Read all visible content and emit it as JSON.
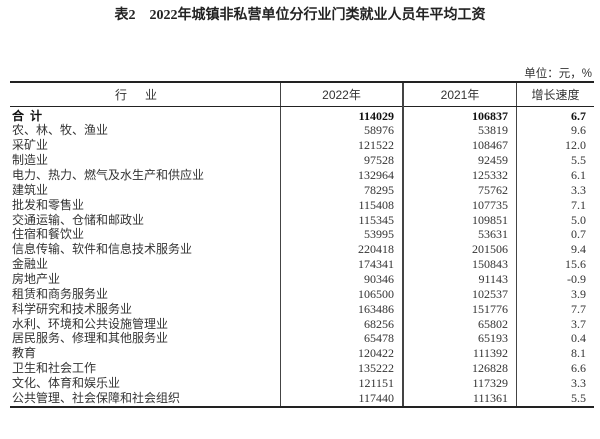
{
  "title": "表2　2022年城镇非私营单位分行业门类就业人员年平均工资",
  "unit": "单位：元，%",
  "table": {
    "headers": [
      "行业",
      "2022年",
      "2021年",
      "增长速度"
    ],
    "rows": [
      [
        "合计",
        "114029",
        "106837",
        "6.7"
      ],
      [
        "农、林、牧、渔业",
        "58976",
        "53819",
        "9.6"
      ],
      [
        "采矿业",
        "121522",
        "108467",
        "12.0"
      ],
      [
        "制造业",
        "97528",
        "92459",
        "5.5"
      ],
      [
        "电力、热力、燃气及水生产和供应业",
        "132964",
        "125332",
        "6.1"
      ],
      [
        "建筑业",
        "78295",
        "75762",
        "3.3"
      ],
      [
        "批发和零售业",
        "115408",
        "107735",
        "7.1"
      ],
      [
        "交通运输、仓储和邮政业",
        "115345",
        "109851",
        "5.0"
      ],
      [
        "住宿和餐饮业",
        "53995",
        "53631",
        "0.7"
      ],
      [
        "信息传输、软件和信息技术服务业",
        "220418",
        "201506",
        "9.4"
      ],
      [
        "金融业",
        "174341",
        "150843",
        "15.6"
      ],
      [
        "房地产业",
        "90346",
        "91143",
        "-0.9"
      ],
      [
        "租赁和商务服务业",
        "106500",
        "102537",
        "3.9"
      ],
      [
        "科学研究和技术服务业",
        "163486",
        "151776",
        "7.7"
      ],
      [
        "水利、环境和公共设施管理业",
        "68256",
        "65802",
        "3.7"
      ],
      [
        "居民服务、修理和其他服务业",
        "65478",
        "65193",
        "0.4"
      ],
      [
        "教育",
        "120422",
        "111392",
        "8.1"
      ],
      [
        "卫生和社会工作",
        "135222",
        "126828",
        "6.6"
      ],
      [
        "文化、体育和娱乐业",
        "121151",
        "117329",
        "3.3"
      ],
      [
        "公共管理、社会保障和社会组织",
        "117440",
        "111361",
        "5.5"
      ]
    ]
  }
}
